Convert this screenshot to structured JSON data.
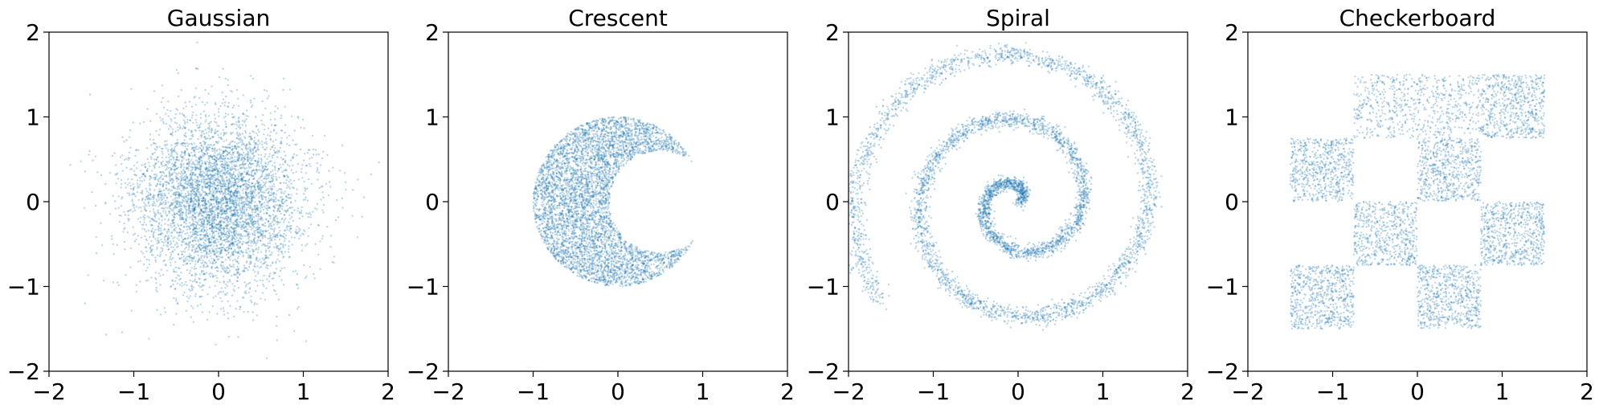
{
  "chart_data": [
    {
      "type": "scatter",
      "title": "Gaussian",
      "distribution": "gaussian",
      "xlim": [
        -2,
        2
      ],
      "ylim": [
        -2,
        2
      ],
      "xticks": [
        -2,
        -1,
        0,
        1,
        2
      ],
      "yticks": [
        -2,
        -1,
        0,
        1,
        2
      ],
      "xtick_labels": [
        "−2",
        "−1",
        "0",
        "1",
        "2"
      ],
      "ytick_labels": [
        "−2",
        "−1",
        "0",
        "1",
        "2"
      ],
      "std": 0.5,
      "n_points": 5000
    },
    {
      "type": "scatter",
      "title": "Crescent",
      "distribution": "crescent",
      "xlim": [
        -2,
        2
      ],
      "ylim": [
        -2,
        2
      ],
      "xticks": [
        -2,
        -1,
        0,
        1,
        2
      ],
      "yticks": [
        -2,
        -1,
        0,
        1,
        2
      ],
      "xtick_labels": [
        "−2",
        "−1",
        "0",
        "1",
        "2"
      ],
      "ytick_labels": [
        "−2",
        "−1",
        "0",
        "1",
        "2"
      ],
      "outer_center": [
        0,
        0
      ],
      "outer_radius": 1.0,
      "inner_center": [
        0.5,
        0
      ],
      "inner_radius": 0.6,
      "n_points": 5000
    },
    {
      "type": "scatter",
      "title": "Spiral",
      "distribution": "spiral",
      "xlim": [
        -2,
        2
      ],
      "ylim": [
        -2,
        2
      ],
      "xticks": [
        -2,
        -1,
        0,
        1,
        2
      ],
      "yticks": [
        -2,
        -1,
        0,
        1,
        2
      ],
      "xtick_labels": [
        "−2",
        "−1",
        "0",
        "1",
        "2"
      ],
      "ytick_labels": [
        "−2",
        "−1",
        "0",
        "1",
        "2"
      ],
      "turns": 2.6,
      "max_radius": 2.0,
      "n_points": 5000
    },
    {
      "type": "scatter",
      "title": "Checkerboard",
      "distribution": "checkerboard",
      "xlim": [
        -2,
        2
      ],
      "ylim": [
        -2,
        2
      ],
      "xticks": [
        -2,
        -1,
        0,
        1,
        2
      ],
      "yticks": [
        -2,
        -1,
        0,
        1,
        2
      ],
      "xtick_labels": [
        "−2",
        "−1",
        "0",
        "1",
        "2"
      ],
      "ytick_labels": [
        "−2",
        "−1",
        "0",
        "1",
        "2"
      ],
      "squares": [
        [
          -0.75,
          0.75,
          0.75,
          1.5
        ],
        [
          0.75,
          1.5,
          0.75,
          1.5
        ],
        [
          -1.5,
          -0.75,
          0,
          0.75
        ],
        [
          0,
          0.75,
          0,
          0.75
        ],
        [
          -0.75,
          0,
          -0.75,
          0
        ],
        [
          0.75,
          1.5,
          -0.75,
          0
        ],
        [
          -1.5,
          -0.75,
          -1.5,
          -0.75
        ],
        [
          0,
          0.75,
          -1.5,
          -0.75
        ]
      ],
      "n_points": 5000
    }
  ],
  "colors": {
    "point": "#1f77b4"
  }
}
